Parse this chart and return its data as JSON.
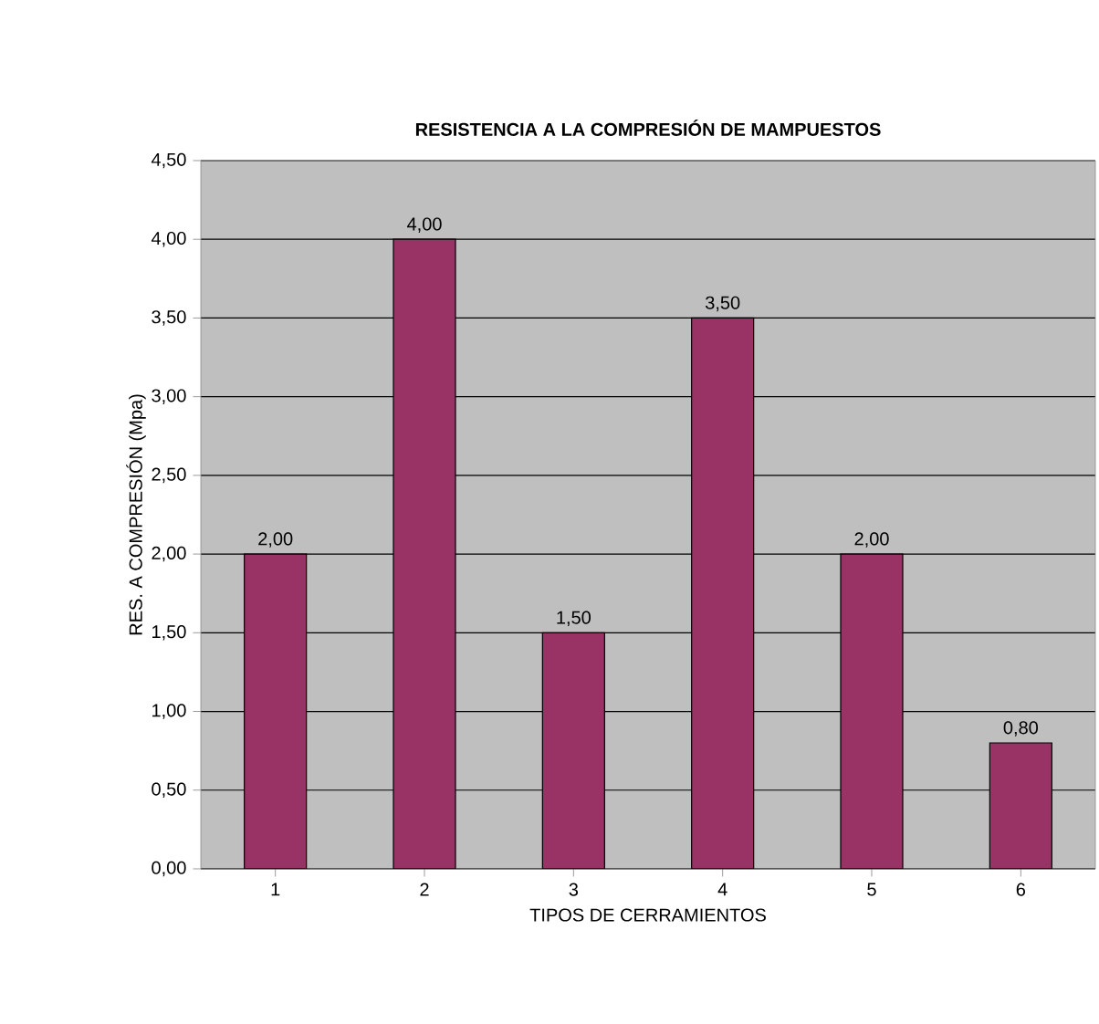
{
  "chart_data": {
    "type": "bar",
    "title": "RESISTENCIA A LA COMPRESIÓN DE MAMPUESTOS",
    "xlabel": "TIPOS DE CERRAMIENTOS",
    "ylabel": "RES. A  COMPRESIÓN (Mpa)",
    "categories": [
      "1",
      "2",
      "3",
      "4",
      "5",
      "6"
    ],
    "values": [
      2.0,
      4.0,
      1.5,
      3.5,
      2.0,
      0.8
    ],
    "value_labels": [
      "2,00",
      "4,00",
      "1,50",
      "3,50",
      "2,00",
      "0,80"
    ],
    "color": "#993366",
    "ylim": [
      0,
      4.5
    ],
    "yticks": [
      {
        "value": 0,
        "label": "0,00"
      },
      {
        "value": 0.5,
        "label": "0,50"
      },
      {
        "value": 1,
        "label": "1,00"
      },
      {
        "value": 1.5,
        "label": "1,50"
      },
      {
        "value": 2,
        "label": "2,00"
      },
      {
        "value": 2.5,
        "label": "2,50"
      },
      {
        "value": 3,
        "label": "3,00"
      },
      {
        "value": 3.5,
        "label": "3,50"
      },
      {
        "value": 4,
        "label": "4,00"
      },
      {
        "value": 4.5,
        "label": "4,50"
      }
    ],
    "grid": "y"
  }
}
